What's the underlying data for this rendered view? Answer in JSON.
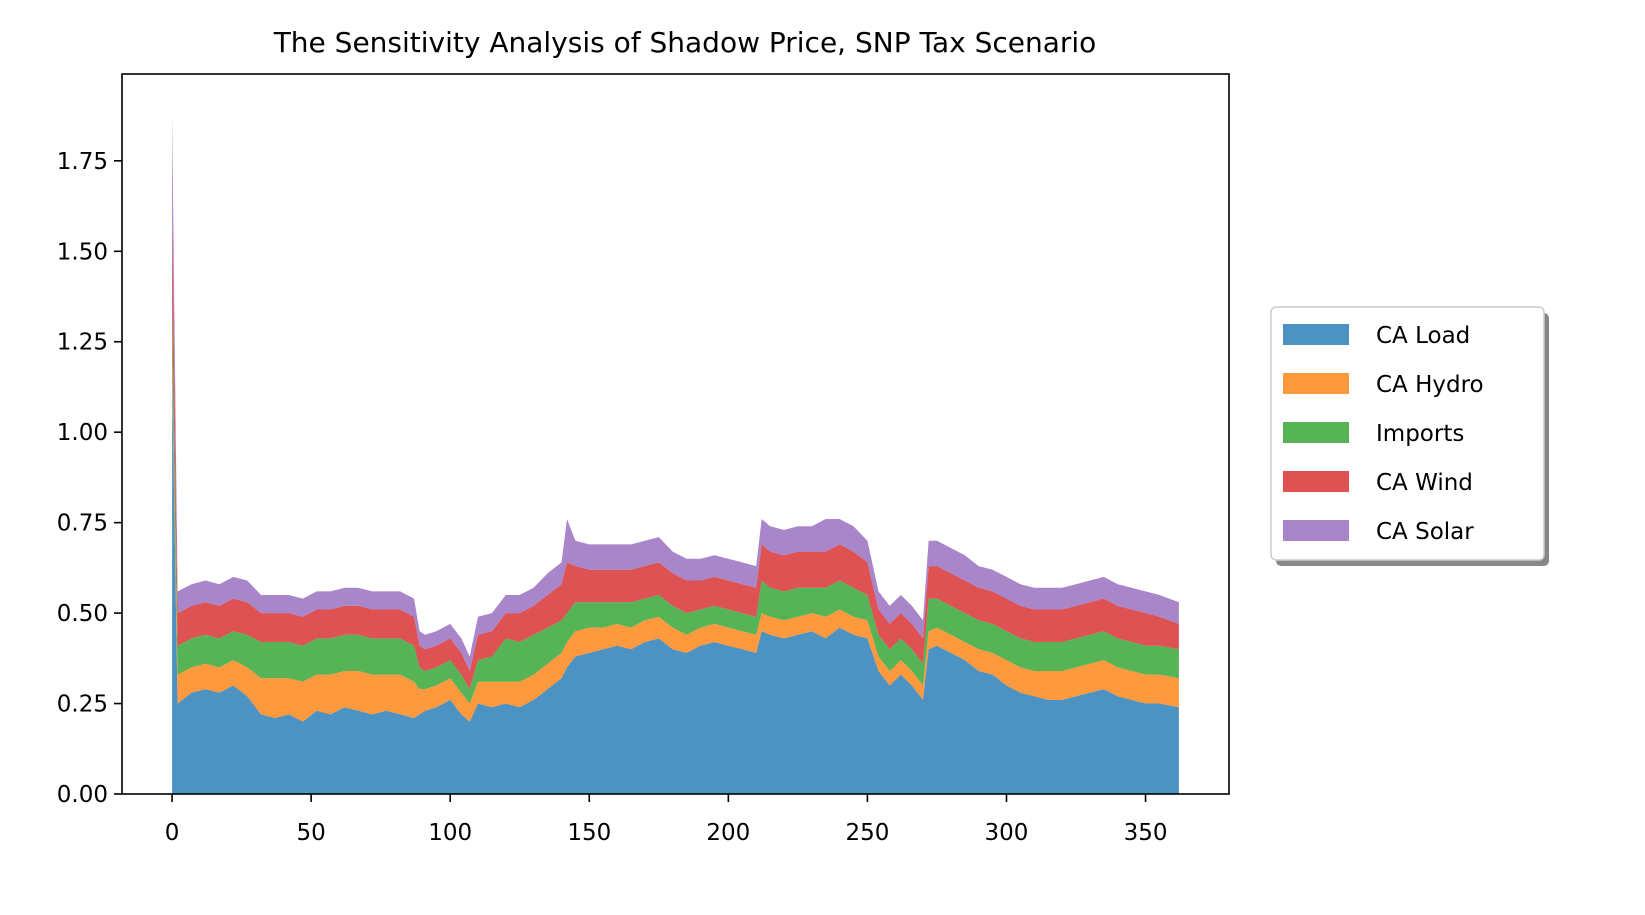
{
  "chart_data": {
    "type": "area",
    "stacked": true,
    "title": "The Sensitivity Analysis of Shadow Price, SNP Tax Scenario",
    "xlabel": "",
    "ylabel": "",
    "xlim": [
      -18,
      380
    ],
    "ylim": [
      0,
      1.99
    ],
    "xticks": [
      0,
      50,
      100,
      150,
      200,
      250,
      300,
      350
    ],
    "yticks": [
      0.0,
      0.25,
      0.5,
      0.75,
      1.0,
      1.25,
      1.5,
      1.75
    ],
    "ytick_labels": [
      "0.00",
      "0.25",
      "0.50",
      "0.75",
      "1.00",
      "1.25",
      "1.50",
      "1.75"
    ],
    "grid": false,
    "legend_position": "outside-right",
    "x": [
      0,
      2,
      7,
      12,
      17,
      22,
      27,
      32,
      37,
      42,
      47,
      52,
      57,
      62,
      67,
      72,
      77,
      82,
      87,
      89,
      91,
      95,
      100,
      104,
      107,
      110,
      115,
      120,
      125,
      130,
      135,
      140,
      142,
      145,
      150,
      155,
      160,
      165,
      170,
      175,
      180,
      185,
      190,
      195,
      200,
      205,
      210,
      212,
      215,
      220,
      225,
      230,
      235,
      240,
      245,
      250,
      254,
      258,
      262,
      266,
      270,
      272,
      275,
      280,
      285,
      290,
      295,
      300,
      305,
      310,
      315,
      320,
      325,
      330,
      335,
      340,
      345,
      350,
      355,
      362
    ],
    "series": [
      {
        "name": "CA Load",
        "color": "#1f77b4",
        "values": [
          1.15,
          0.25,
          0.28,
          0.29,
          0.28,
          0.3,
          0.27,
          0.22,
          0.21,
          0.22,
          0.2,
          0.23,
          0.22,
          0.24,
          0.23,
          0.22,
          0.23,
          0.22,
          0.21,
          0.22,
          0.23,
          0.24,
          0.26,
          0.22,
          0.2,
          0.25,
          0.24,
          0.25,
          0.24,
          0.26,
          0.29,
          0.32,
          0.35,
          0.38,
          0.39,
          0.4,
          0.41,
          0.4,
          0.42,
          0.43,
          0.4,
          0.39,
          0.41,
          0.42,
          0.41,
          0.4,
          0.39,
          0.45,
          0.44,
          0.43,
          0.44,
          0.45,
          0.43,
          0.46,
          0.44,
          0.43,
          0.34,
          0.3,
          0.33,
          0.3,
          0.26,
          0.4,
          0.41,
          0.39,
          0.37,
          0.34,
          0.33,
          0.3,
          0.28,
          0.27,
          0.26,
          0.26,
          0.27,
          0.28,
          0.29,
          0.27,
          0.26,
          0.25,
          0.25,
          0.24
        ]
      },
      {
        "name": "CA Hydro",
        "color": "#ff7f0e",
        "values": [
          0.05,
          0.08,
          0.07,
          0.07,
          0.07,
          0.07,
          0.08,
          0.1,
          0.11,
          0.1,
          0.11,
          0.1,
          0.11,
          0.1,
          0.11,
          0.11,
          0.1,
          0.11,
          0.1,
          0.07,
          0.06,
          0.06,
          0.06,
          0.06,
          0.05,
          0.06,
          0.07,
          0.06,
          0.07,
          0.07,
          0.07,
          0.07,
          0.07,
          0.07,
          0.07,
          0.06,
          0.06,
          0.06,
          0.06,
          0.06,
          0.06,
          0.05,
          0.05,
          0.05,
          0.05,
          0.05,
          0.05,
          0.05,
          0.05,
          0.05,
          0.05,
          0.05,
          0.06,
          0.05,
          0.05,
          0.05,
          0.04,
          0.04,
          0.04,
          0.04,
          0.04,
          0.05,
          0.05,
          0.05,
          0.05,
          0.06,
          0.06,
          0.07,
          0.07,
          0.07,
          0.08,
          0.08,
          0.08,
          0.08,
          0.08,
          0.08,
          0.08,
          0.08,
          0.08,
          0.08
        ]
      },
      {
        "name": "Imports",
        "color": "#2ca02c",
        "values": [
          0.15,
          0.08,
          0.08,
          0.08,
          0.08,
          0.08,
          0.09,
          0.1,
          0.1,
          0.1,
          0.1,
          0.1,
          0.1,
          0.1,
          0.1,
          0.1,
          0.1,
          0.1,
          0.1,
          0.06,
          0.05,
          0.05,
          0.05,
          0.05,
          0.04,
          0.06,
          0.07,
          0.12,
          0.11,
          0.11,
          0.1,
          0.09,
          0.08,
          0.08,
          0.07,
          0.07,
          0.06,
          0.07,
          0.06,
          0.06,
          0.06,
          0.06,
          0.05,
          0.05,
          0.05,
          0.05,
          0.05,
          0.09,
          0.08,
          0.08,
          0.08,
          0.07,
          0.08,
          0.08,
          0.08,
          0.07,
          0.06,
          0.06,
          0.06,
          0.06,
          0.06,
          0.09,
          0.08,
          0.08,
          0.08,
          0.08,
          0.08,
          0.08,
          0.08,
          0.08,
          0.08,
          0.08,
          0.08,
          0.08,
          0.08,
          0.08,
          0.08,
          0.08,
          0.08,
          0.08
        ]
      },
      {
        "name": "CA Wind",
        "color": "#d62728",
        "values": [
          0.25,
          0.09,
          0.09,
          0.09,
          0.09,
          0.09,
          0.09,
          0.08,
          0.08,
          0.08,
          0.08,
          0.08,
          0.08,
          0.08,
          0.08,
          0.08,
          0.08,
          0.08,
          0.08,
          0.06,
          0.06,
          0.06,
          0.06,
          0.06,
          0.05,
          0.07,
          0.07,
          0.07,
          0.08,
          0.08,
          0.09,
          0.1,
          0.14,
          0.1,
          0.09,
          0.09,
          0.09,
          0.09,
          0.09,
          0.09,
          0.09,
          0.09,
          0.08,
          0.08,
          0.08,
          0.08,
          0.08,
          0.1,
          0.1,
          0.1,
          0.1,
          0.1,
          0.1,
          0.1,
          0.1,
          0.09,
          0.07,
          0.07,
          0.07,
          0.07,
          0.07,
          0.09,
          0.09,
          0.09,
          0.09,
          0.09,
          0.09,
          0.09,
          0.09,
          0.09,
          0.09,
          0.09,
          0.09,
          0.09,
          0.09,
          0.09,
          0.09,
          0.09,
          0.08,
          0.07
        ]
      },
      {
        "name": "CA Solar",
        "color": "#9467bd",
        "values": [
          0.28,
          0.06,
          0.06,
          0.06,
          0.06,
          0.06,
          0.06,
          0.05,
          0.05,
          0.05,
          0.05,
          0.05,
          0.05,
          0.05,
          0.05,
          0.05,
          0.05,
          0.05,
          0.05,
          0.04,
          0.04,
          0.04,
          0.04,
          0.04,
          0.04,
          0.05,
          0.05,
          0.05,
          0.05,
          0.05,
          0.06,
          0.06,
          0.12,
          0.07,
          0.07,
          0.07,
          0.07,
          0.07,
          0.07,
          0.07,
          0.06,
          0.06,
          0.06,
          0.06,
          0.06,
          0.06,
          0.06,
          0.07,
          0.07,
          0.07,
          0.07,
          0.07,
          0.09,
          0.07,
          0.07,
          0.06,
          0.05,
          0.05,
          0.05,
          0.05,
          0.05,
          0.07,
          0.07,
          0.07,
          0.07,
          0.06,
          0.06,
          0.06,
          0.06,
          0.06,
          0.06,
          0.06,
          0.06,
          0.06,
          0.06,
          0.06,
          0.06,
          0.06,
          0.06,
          0.06
        ]
      }
    ]
  }
}
